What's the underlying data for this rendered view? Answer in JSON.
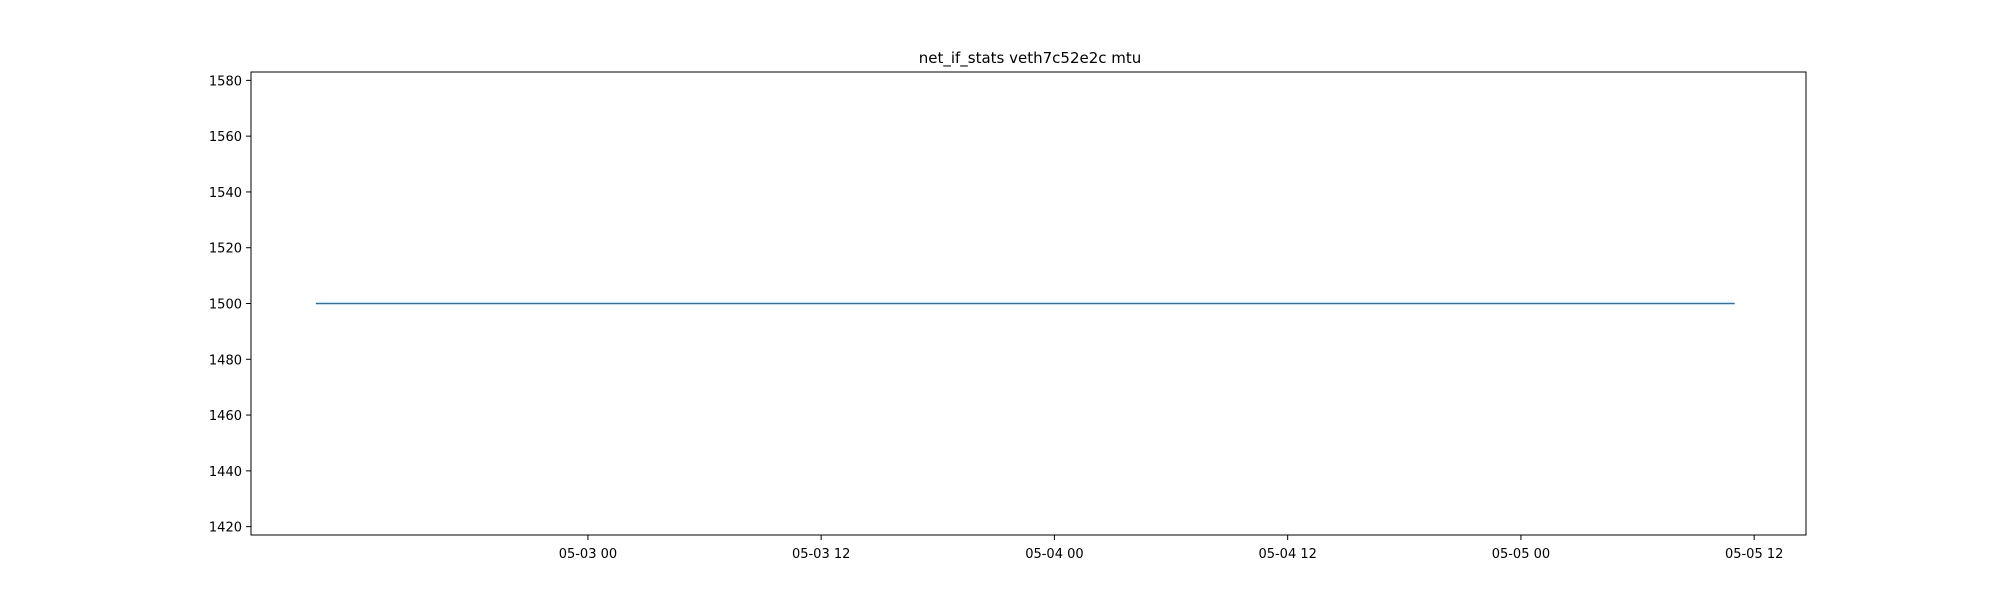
{
  "chart_data": {
    "type": "line",
    "title": "net_if_stats veth7c52e2c mtu",
    "xlabel": "",
    "ylabel": "",
    "x_axis": {
      "kind": "datetime",
      "range": [
        "2025-05-02 06:40",
        "2025-05-05 14:40"
      ],
      "ticks": [
        {
          "value": "2025-05-03 00:00",
          "label": "05-03 00"
        },
        {
          "value": "2025-05-03 12:00",
          "label": "05-03 12"
        },
        {
          "value": "2025-05-04 00:00",
          "label": "05-04 00"
        },
        {
          "value": "2025-05-04 12:00",
          "label": "05-04 12"
        },
        {
          "value": "2025-05-05 00:00",
          "label": "05-05 00"
        },
        {
          "value": "2025-05-05 12:00",
          "label": "05-05 12"
        }
      ]
    },
    "y_axis": {
      "range": [
        1417,
        1583
      ],
      "ticks": [
        1420,
        1440,
        1460,
        1480,
        1500,
        1520,
        1540,
        1560,
        1580
      ]
    },
    "grid": false,
    "legend": "none",
    "series": [
      {
        "color": "#1f77b4",
        "points": [
          {
            "x": "2025-05-02 10:00",
            "y": 1500
          },
          {
            "x": "2025-05-05 11:00",
            "y": 1500
          }
        ]
      }
    ],
    "colors": {
      "axes": "#000000",
      "background": "#ffffff"
    }
  }
}
